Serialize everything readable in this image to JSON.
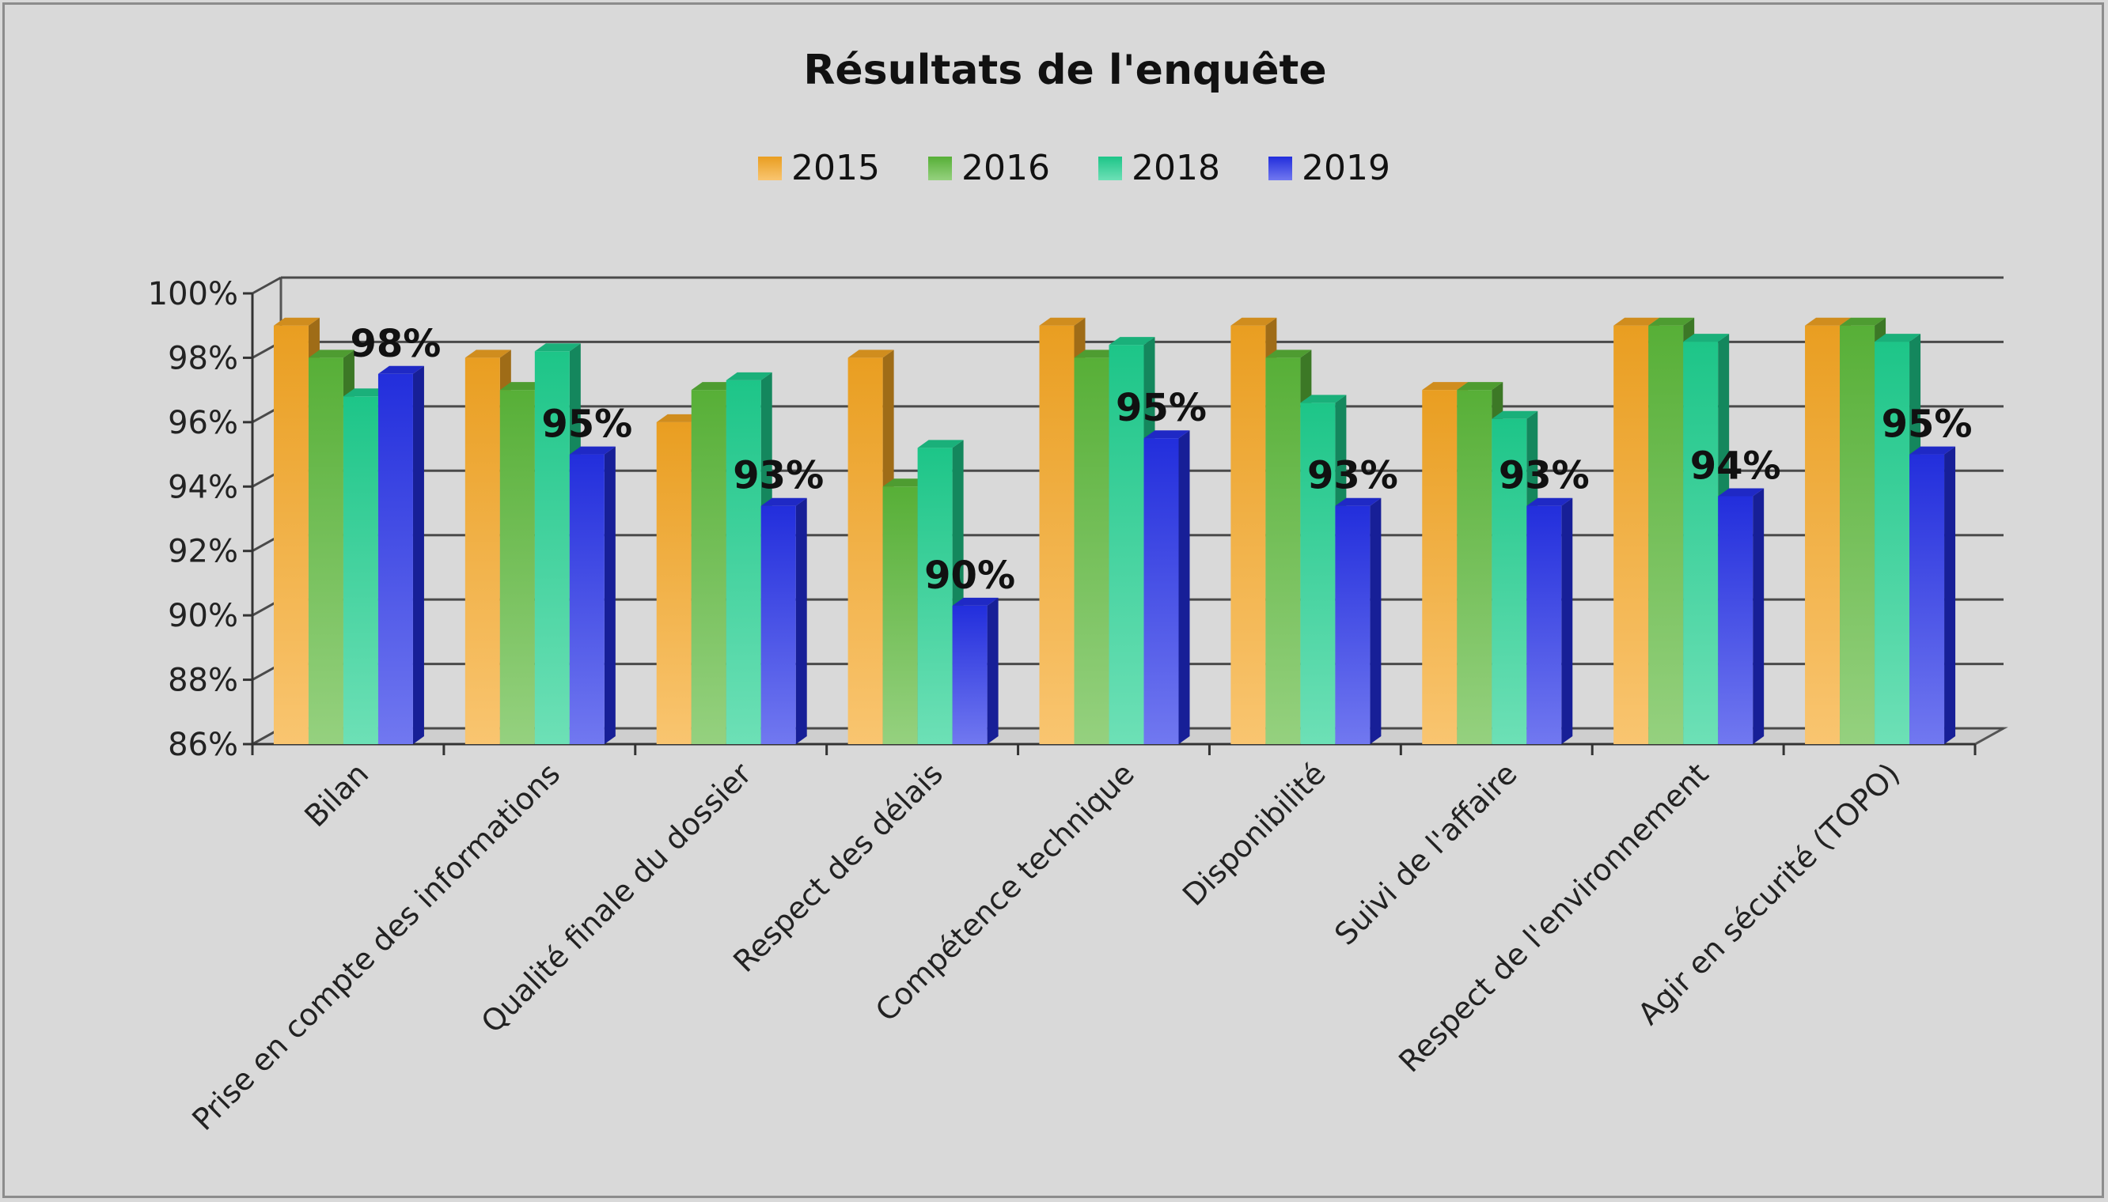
{
  "chart_data": {
    "type": "bar",
    "title": "Résultats de l'enquête",
    "legend_position": "top",
    "grid": true,
    "ylim": [
      0.86,
      1.0
    ],
    "yticks": [
      "86%",
      "88%",
      "90%",
      "92%",
      "94%",
      "96%",
      "98%",
      "100%"
    ],
    "categories": [
      "Bilan",
      "Prise en compte des informations",
      "Qualité finale du dossier",
      "Respect des délais",
      "Compétence technique",
      "Disponibilité",
      "Suivi de l'affaire",
      "Respect de l'environnement",
      "Agir en sécurité (TOPO)"
    ],
    "series": [
      {
        "name": "2015",
        "color": "#f5a623",
        "values": [
          0.99,
          0.98,
          0.96,
          0.98,
          0.99,
          0.99,
          0.97,
          0.99,
          0.99
        ]
      },
      {
        "name": "2016",
        "color": "#5cb83a",
        "values": [
          0.98,
          0.97,
          0.97,
          0.94,
          0.98,
          0.98,
          0.97,
          0.99,
          0.99
        ]
      },
      {
        "name": "2018",
        "color": "#1fcf8f",
        "values": [
          0.968,
          0.982,
          0.973,
          0.952,
          0.984,
          0.966,
          0.961,
          0.985,
          0.985
        ]
      },
      {
        "name": "2019",
        "color": "#2430e8",
        "values": [
          0.975,
          0.95,
          0.934,
          0.903,
          0.955,
          0.934,
          0.934,
          0.937,
          0.95
        ]
      }
    ],
    "data_labels": [
      "98%",
      "95%",
      "93%",
      "90%",
      "95%",
      "93%",
      "93%",
      "94%",
      "95%"
    ]
  }
}
